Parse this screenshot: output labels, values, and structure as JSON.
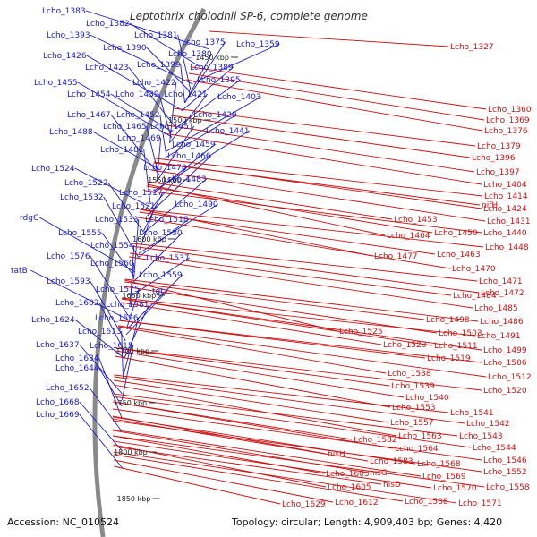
{
  "title": "Leptothrix cholodnii SP-6, complete genome",
  "footer": {
    "accession": "Accession: NC_010524",
    "summary": "Topology: circular; Length: 4,909,403 bp; Genes: 4,420"
  },
  "colors": {
    "left_label": "#1a1ad0",
    "right_label": "#cc1111",
    "backbone": "#8a8a8a"
  },
  "kbp_marks": [
    "1450 kbp",
    "1500 kbp",
    "1550 kbp",
    "1600 kbp",
    "1650 kbp",
    "1700 kbp",
    "1750 kbp",
    "1800 kbp",
    "1850 kbp"
  ],
  "left_labels": [
    "Lcho_1383",
    "Lcho_1382",
    "Lcho_1393",
    "Lcho_1381",
    "Lcho_1375",
    "Lcho_1359",
    "Lcho_1390",
    "Lcho_1380",
    "Lcho_1426",
    "Lcho_1423",
    "Lcho_1399",
    "Lcho_1389",
    "Lcho_1395",
    "Lcho_1455",
    "Lcho_1422",
    "Lcho_1454",
    "Lcho_1439",
    "Lcho_1421",
    "Lcho_1403",
    "Lcho_1467",
    "Lcho_1452",
    "Lcho_1429",
    "Lcho_1465",
    "Lcho_1451",
    "Lcho_1441",
    "Lcho_1488",
    "Lcho_1469",
    "Lcho_1459",
    "Lcho_1481",
    "Lcho_1466",
    "Lcho_1524",
    "Lcho_1478",
    "Lcho_1522",
    "Lcho_1483",
    "Lcho_1532",
    "Lcho_1517",
    "Lcho_1521",
    "Lcho_1490",
    "rdgC",
    "Lcho_1533",
    "Lcho_1518",
    "Lcho_1555",
    "Lcho_1530",
    "Lcho_1554",
    "Lcho_1576",
    "Lcho_1537",
    "Lcho_1560",
    "tatB",
    "Lcho_1559",
    "Lcho_1593",
    "Lcho_1575",
    "tgt",
    "Lcho_1602",
    "Lcho_1581",
    "Lcho_1596",
    "Lcho_1624",
    "Lcho_1613",
    "Lcho_1637",
    "Lcho_1615",
    "Lcho_1634",
    "Lcho_1644",
    "Lcho_1652",
    "Lcho_1668",
    "Lcho_1669"
  ],
  "right_labels": [
    "Lcho_1327",
    "Lcho_1360",
    "Lcho_1369",
    "Lcho_1376",
    "Lcho_1379",
    "Lcho_1396",
    "Lcho_1397",
    "Lcho_1404",
    "Lcho_1414",
    "nifH",
    "Lcho_1424",
    "Lcho_1431",
    "Lcho_1453",
    "Lcho_1440",
    "Lcho_1450",
    "Lcho_1464",
    "Lcho_1448",
    "Lcho_1463",
    "Lcho_1477",
    "Lcho_1470",
    "Lcho_1471",
    "Lcho_1484",
    "Lcho_1472",
    "Lcho_1485",
    "Lcho_1498",
    "Lcho_1486",
    "Lcho_1503",
    "Lcho_1525",
    "Lcho_1491",
    "Lcho_1523",
    "Lcho_1511",
    "Lcho_1499",
    "Lcho_1519",
    "Lcho_1506",
    "Lcho_1538",
    "Lcho_1512",
    "Lcho_1539",
    "Lcho_1520",
    "Lcho_1540",
    "Lcho_1553",
    "Lcho_1541",
    "Lcho_1557",
    "Lcho_1542",
    "Lcho_1563",
    "Lcho_1582",
    "Lcho_1543",
    "Lcho_1564",
    "Lcho_1544",
    "hisH",
    "Lcho_1583",
    "Lcho_1568",
    "Lcho_1546",
    "Lcho_1603",
    "hisG",
    "Lcho_1569",
    "Lcho_1552",
    "hisD",
    "Lcho_1605",
    "Lcho_1570",
    "Lcho_1558",
    "Lcho_1629",
    "Lcho_1612",
    "Lcho_1588",
    "Lcho_1571"
  ]
}
